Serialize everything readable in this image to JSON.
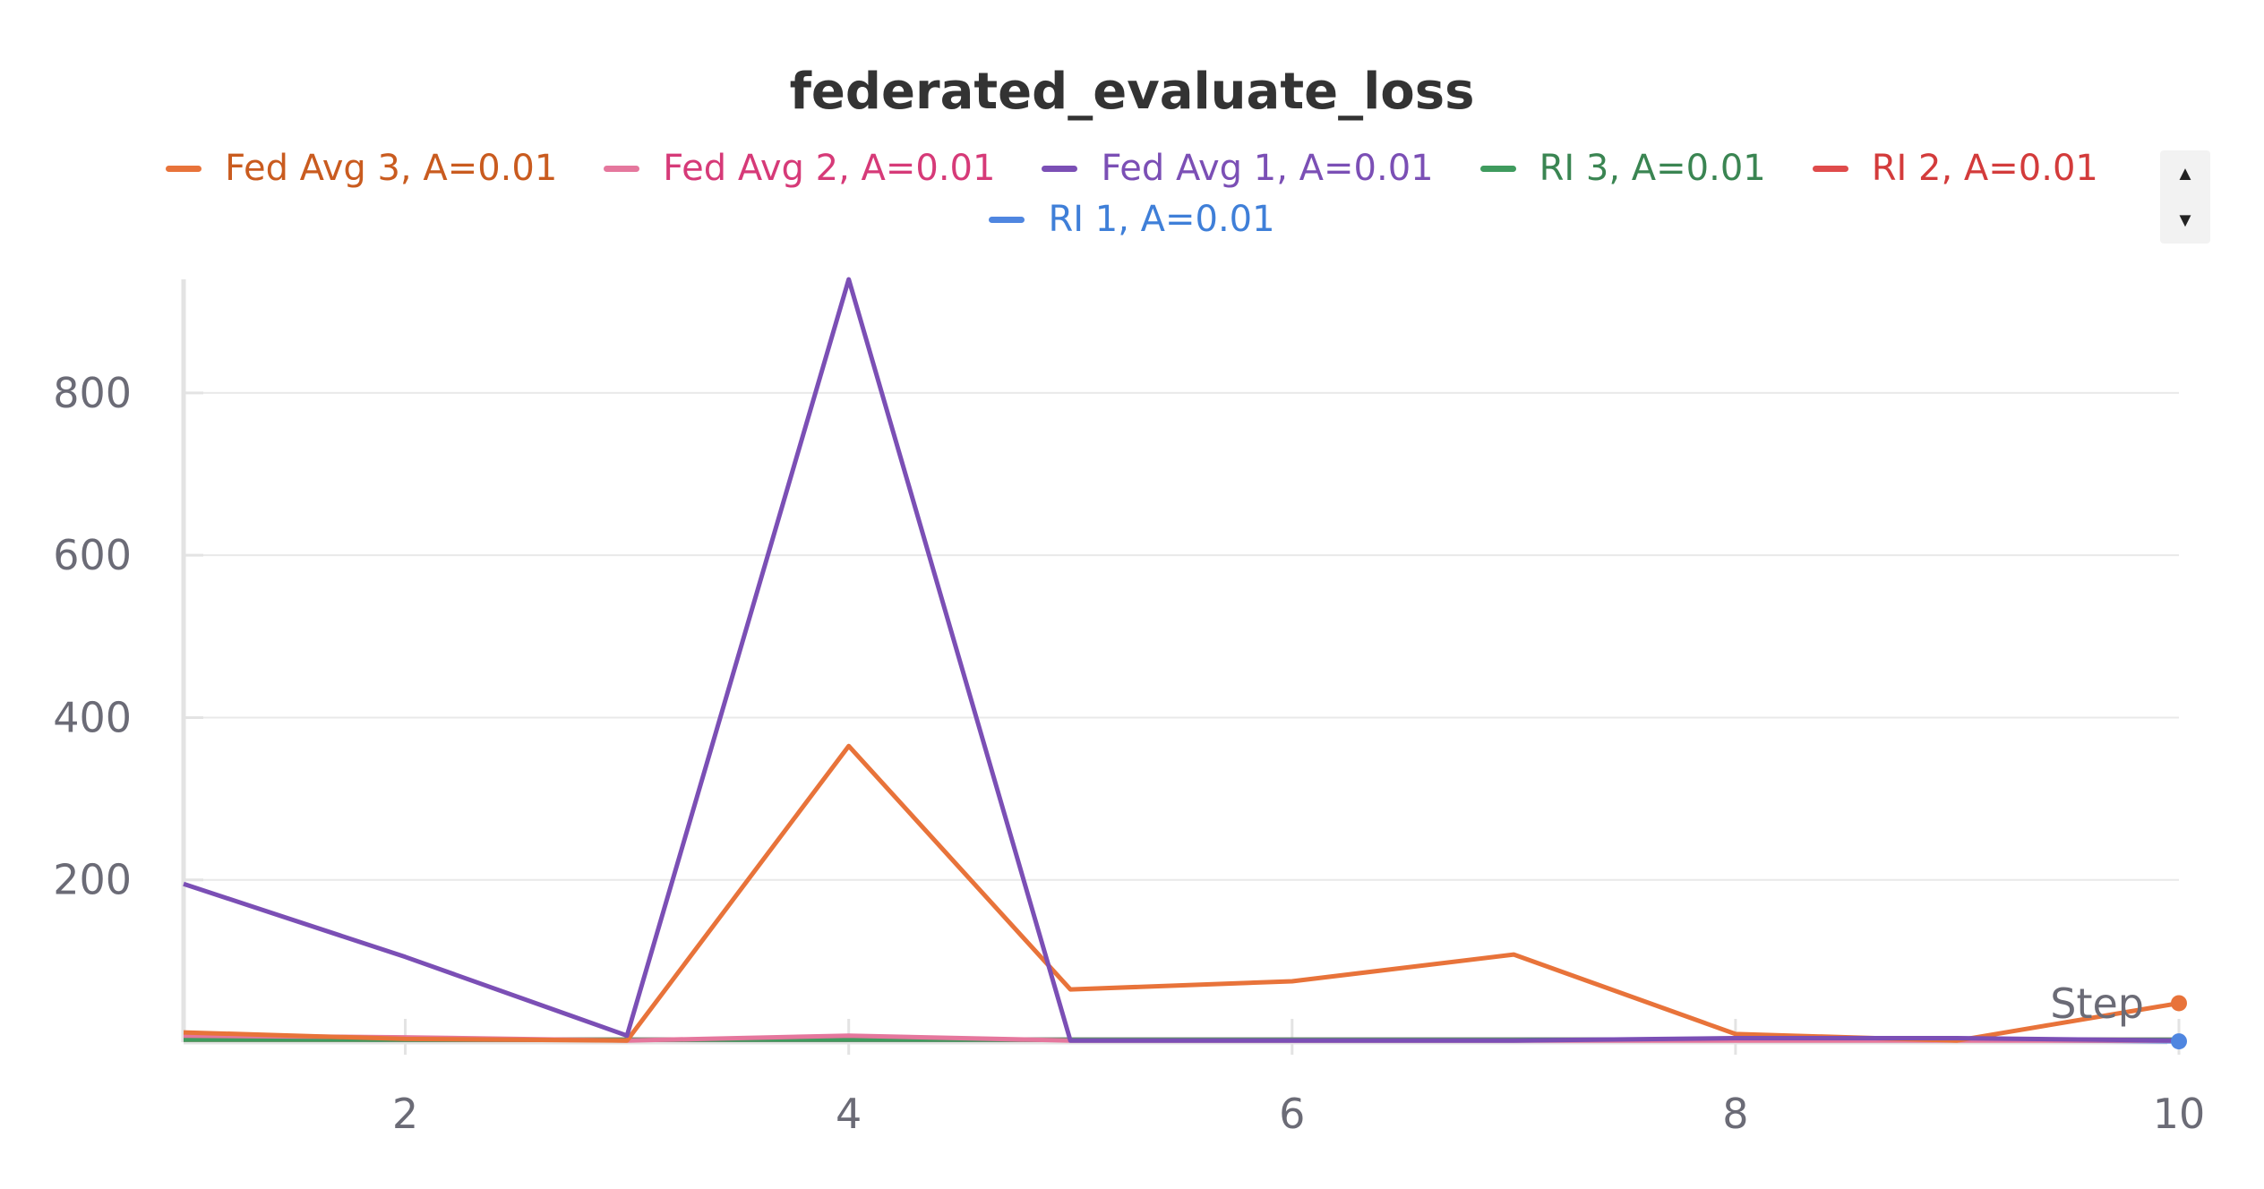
{
  "colors": {
    "fed_avg_3": "#e8733a",
    "fed_avg_2": "#e5779d",
    "fed_avg_1": "#7b4fb5",
    "ri_3": "#3f9b5e",
    "ri_2": "#df4b4b",
    "ri_1": "#4f86e0"
  },
  "legend_text_colors": {
    "fed_avg_3": "#c95b1f",
    "fed_avg_2": "#d63a78",
    "fed_avg_1": "#7b4fb5",
    "ri_3": "#3a8552",
    "ri_2": "#d33b3b",
    "ri_1": "#3f7fd8"
  },
  "legend_scroll": {
    "up_icon": "triangle-up-icon",
    "down_icon": "triangle-down-icon"
  },
  "chart_data": {
    "type": "line",
    "title": "federated_evaluate_loss",
    "xlabel": "Step",
    "ylabel": "",
    "xlim": [
      1,
      10
    ],
    "ylim": [
      0,
      940
    ],
    "xticks": [
      2,
      4,
      6,
      8,
      10
    ],
    "yticks": [
      200,
      400,
      600,
      800
    ],
    "grid": true,
    "legend_position": "top",
    "series": [
      {
        "name": "Fed Avg 3, A=0.01",
        "color_key": "fed_avg_3",
        "x": [
          1,
          2,
          3,
          4,
          5,
          6,
          7,
          8,
          9,
          10
        ],
        "y": [
          12,
          4,
          2,
          365,
          65,
          75,
          108,
          10,
          2,
          48
        ]
      },
      {
        "name": "Fed Avg 2, A=0.01",
        "color_key": "fed_avg_2",
        "x": [
          1,
          2,
          3,
          4,
          5,
          6,
          7,
          8,
          9,
          10
        ],
        "y": [
          8,
          6,
          2,
          8,
          2,
          2,
          2,
          2,
          2,
          2
        ]
      },
      {
        "name": "Fed Avg 1, A=0.01",
        "color_key": "fed_avg_1",
        "x": [
          1,
          2,
          3,
          4,
          5,
          6,
          7,
          8,
          9,
          10
        ],
        "y": [
          195,
          105,
          8,
          940,
          2,
          2,
          2,
          5,
          5,
          2
        ]
      },
      {
        "name": "RI 3, A=0.01",
        "color_key": "ri_3",
        "x": [
          1,
          2,
          3,
          4,
          5,
          6,
          7,
          8,
          9,
          10
        ],
        "y": [
          3,
          3,
          3,
          3,
          3,
          3,
          3,
          3,
          3,
          3
        ]
      },
      {
        "name": "RI 2, A=0.01",
        "color_key": "ri_2",
        "x": [
          1,
          2,
          3,
          4,
          5,
          6,
          7,
          8,
          9,
          10
        ],
        "y": [
          3,
          3,
          3,
          3,
          3,
          3,
          3,
          3,
          3,
          3
        ]
      },
      {
        "name": "RI 1, A=0.01",
        "color_key": "ri_1",
        "x": [
          1,
          2,
          3,
          4,
          5,
          6,
          7,
          8,
          9,
          10
        ],
        "y": [
          4,
          3,
          3,
          3,
          3,
          3,
          3,
          3,
          3,
          1
        ]
      }
    ]
  }
}
